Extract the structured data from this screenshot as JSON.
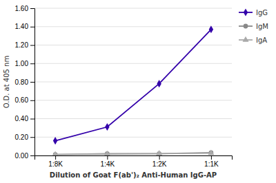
{
  "chart_data": {
    "type": "line",
    "categories": [
      "1:8K",
      "1:4K",
      "1:2K",
      "1:1K"
    ],
    "series": [
      {
        "name": "IgG",
        "color": "#3300aa",
        "marker": "diamond",
        "values": [
          0.16,
          0.31,
          0.78,
          1.37
        ]
      },
      {
        "name": "IgM",
        "color": "#888888",
        "marker": "circle",
        "values": [
          0.01,
          0.02,
          0.02,
          0.03
        ]
      },
      {
        "name": "IgA",
        "color": "#aaaaaa",
        "marker": "triangle",
        "values": [
          0.01,
          0.015,
          0.02,
          0.025
        ]
      }
    ],
    "ylabel": "O.D. at 405 nm",
    "xlabel": "Dilution of Goat F(ab')₂ Anti-Human IgG-AP",
    "ylim": [
      0.0,
      1.6
    ],
    "yticks": [
      {
        "value": 0.0,
        "label": "0.00"
      },
      {
        "value": 0.2,
        "label": "0.20"
      },
      {
        "value": 0.4,
        "label": "0.40"
      },
      {
        "value": 0.6,
        "label": "0.60"
      },
      {
        "value": 0.8,
        "label": "0.80"
      },
      {
        "value": 1.0,
        "label": "1.00"
      },
      {
        "value": 1.2,
        "label": "1.20"
      },
      {
        "value": 1.4,
        "label": "1.40"
      },
      {
        "value": 1.6,
        "label": "1.60"
      }
    ],
    "grid": true,
    "legend": "right"
  }
}
